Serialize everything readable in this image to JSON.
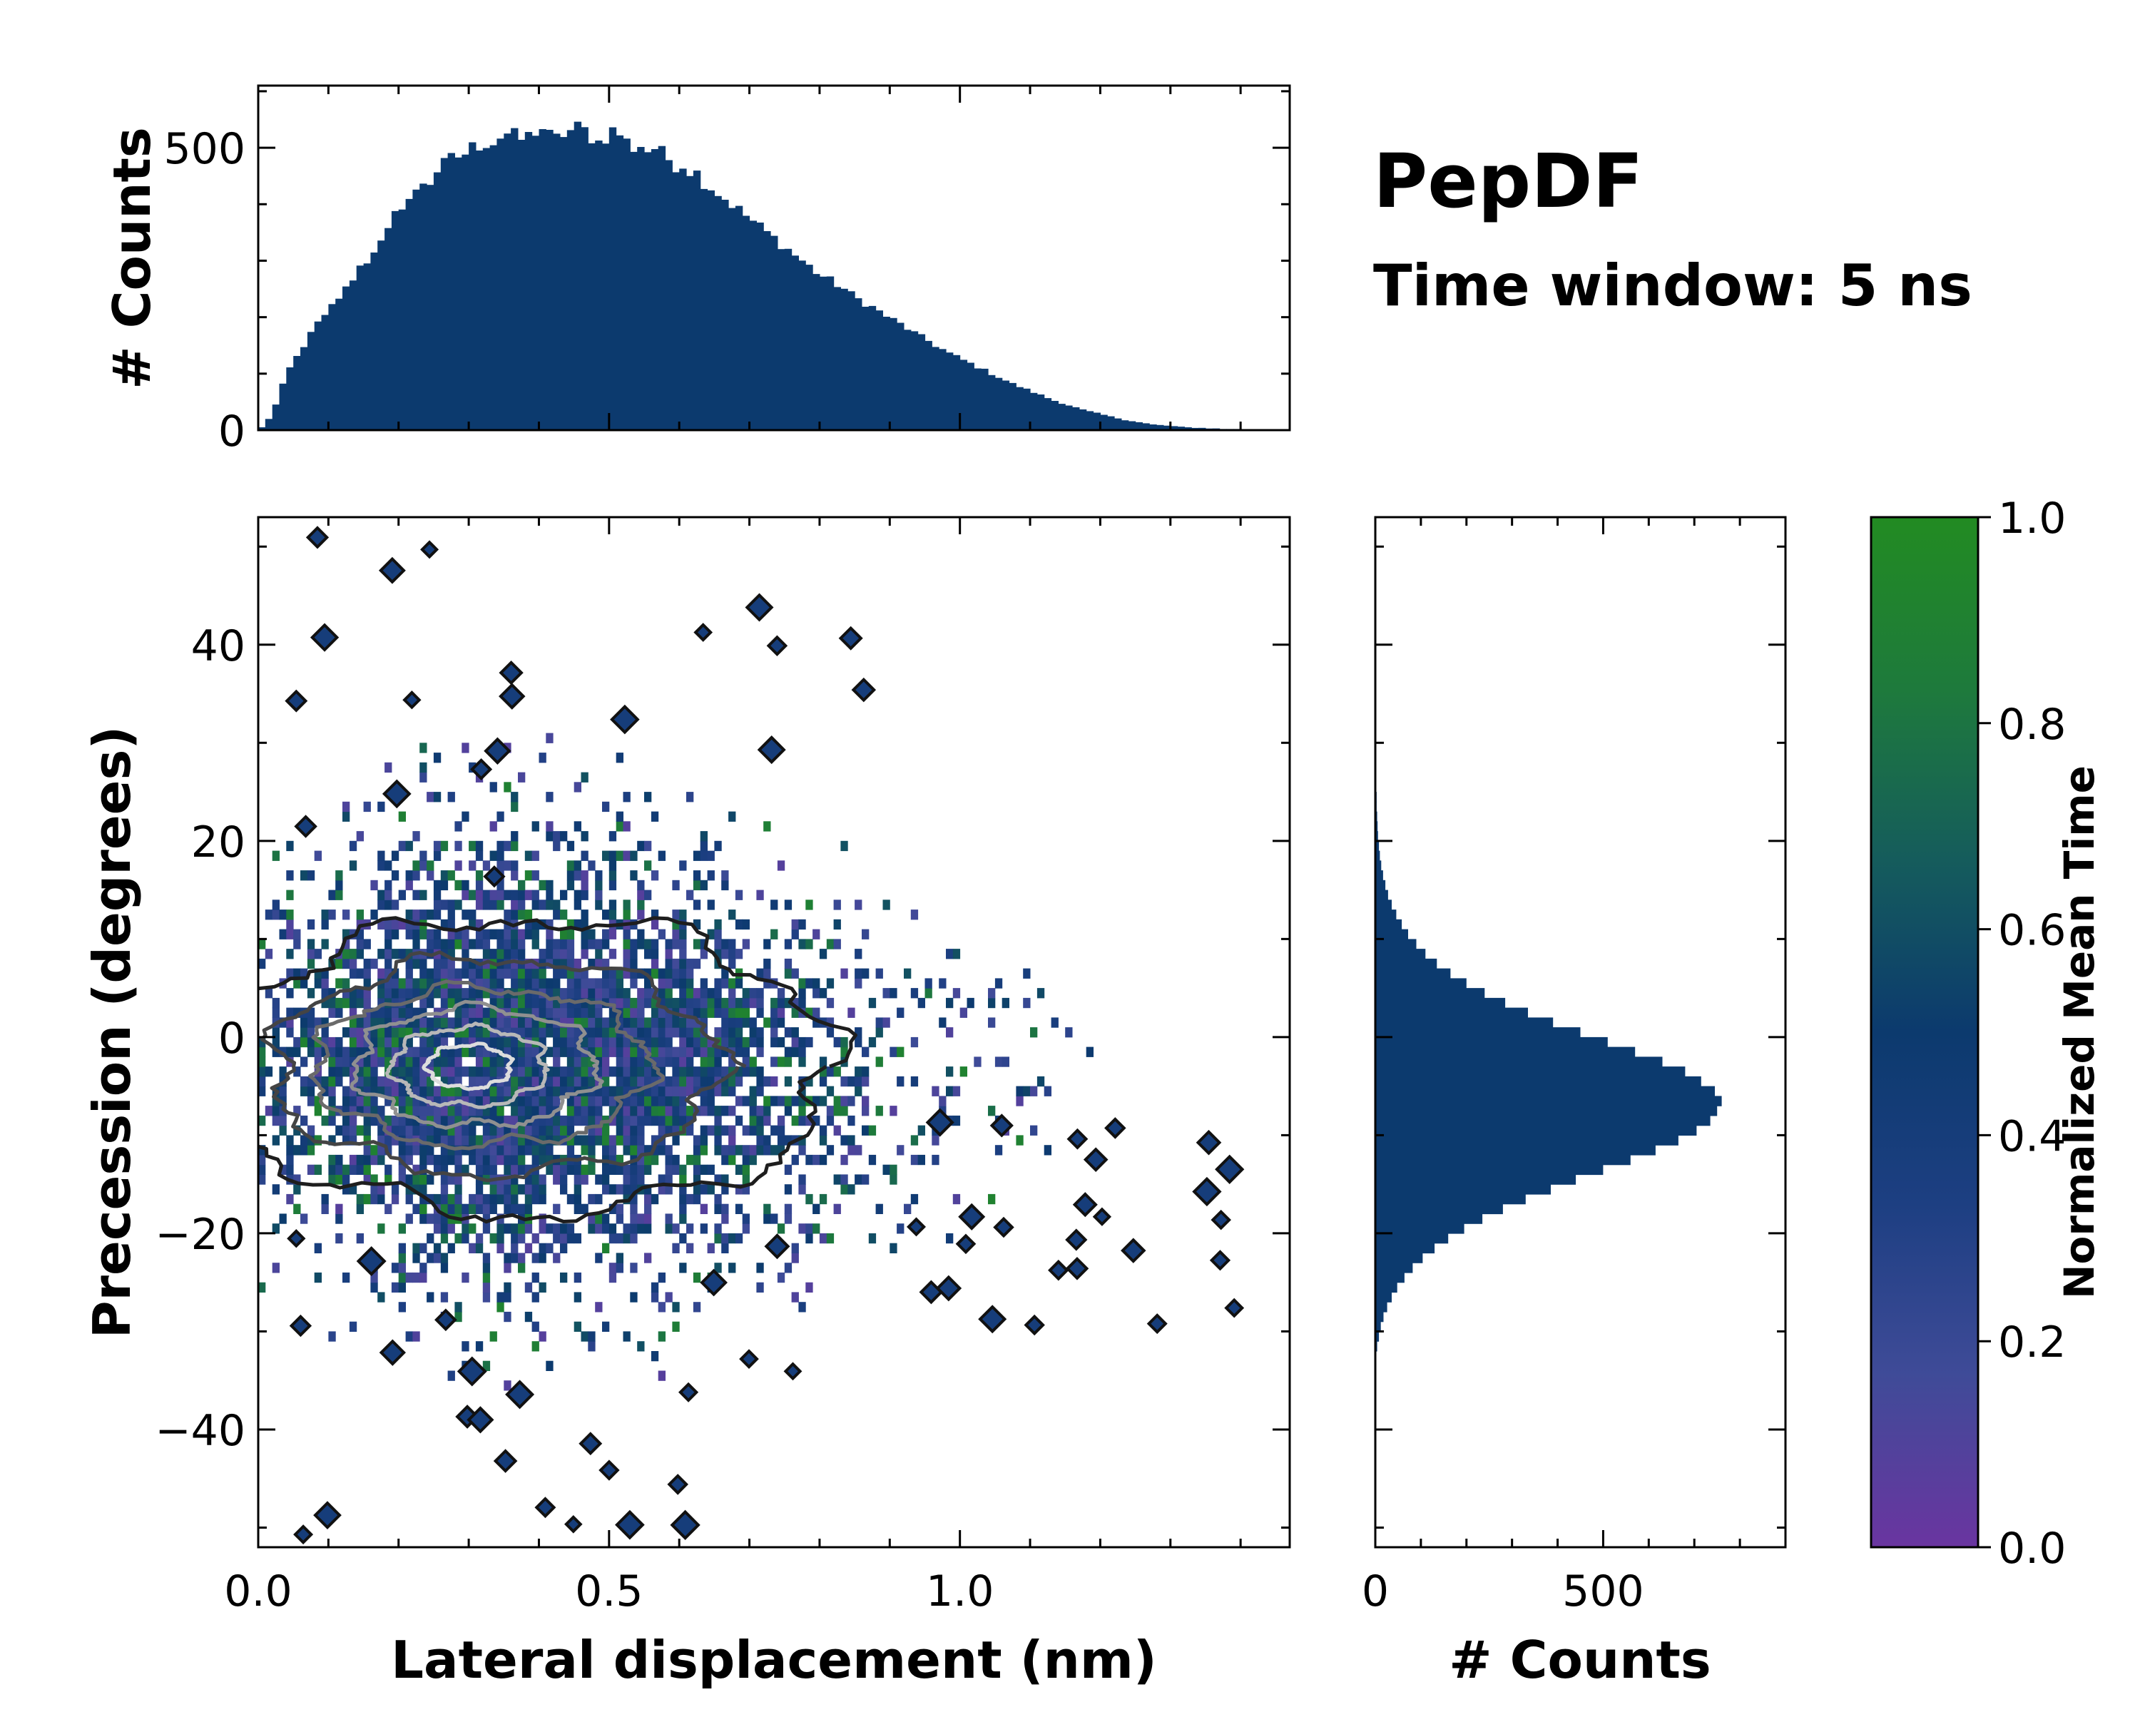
{
  "figure": {
    "title": "PepDF",
    "subtitle": "Time window: 5 ns"
  },
  "chart_data": [
    {
      "id": "top_hist",
      "type": "bar",
      "title": "",
      "xlabel": "",
      "ylabel": "# Counts",
      "xlim": [
        0.0,
        1.47
      ],
      "ylim": [
        0,
        610
      ],
      "yticks": [
        0,
        500
      ],
      "ytick_labels": [
        "0",
        "500"
      ],
      "bin_width": 0.01,
      "color": "#0c3a6e",
      "values": [
        5,
        20,
        45,
        80,
        110,
        130,
        150,
        170,
        190,
        200,
        220,
        235,
        250,
        270,
        290,
        300,
        320,
        330,
        350,
        380,
        400,
        410,
        420,
        440,
        440,
        460,
        470,
        480,
        485,
        490,
        500,
        505,
        510,
        510,
        520,
        525,
        520,
        515,
        520,
        530,
        535,
        520,
        515,
        525,
        530,
        535,
        530,
        520,
        510,
        520,
        530,
        525,
        510,
        500,
        505,
        495,
        500,
        490,
        480,
        470,
        470,
        460,
        455,
        440,
        430,
        420,
        410,
        400,
        390,
        380,
        370,
        360,
        350,
        340,
        330,
        320,
        310,
        300,
        290,
        280,
        272,
        265,
        258,
        250,
        240,
        232,
        225,
        218,
        210,
        202,
        195,
        188,
        180,
        172,
        165,
        158,
        150,
        143,
        136,
        130,
        124,
        118,
        112,
        106,
        100,
        94,
        88,
        82,
        77,
        72,
        67,
        62,
        57,
        52,
        48,
        44,
        40,
        36,
        33,
        30,
        27,
        24,
        21,
        18,
        16,
        14,
        12,
        10,
        9,
        8,
        7,
        6,
        5,
        4,
        4,
        3,
        3,
        2,
        2,
        2,
        1,
        1,
        1,
        1,
        1,
        1,
        1
      ]
    },
    {
      "id": "main_2d",
      "type": "heatmap",
      "title": "",
      "xlabel": "Lateral displacement (nm)",
      "ylabel": "Precession (degrees)",
      "xlim": [
        0.0,
        1.47
      ],
      "ylim": [
        -52,
        53
      ],
      "xticks": [
        0.0,
        0.5,
        1.0
      ],
      "xtick_labels": [
        "0.0",
        "0.5",
        "1.0"
      ],
      "yticks": [
        -40,
        -20,
        0,
        20,
        40
      ],
      "ytick_labels": [
        "−40",
        "−20",
        "0",
        "20",
        "40"
      ],
      "description_values": {
        "density_peak_x": 0.32,
        "density_peak_y": -3,
        "sigma_x": 0.28,
        "sigma_y": 10,
        "color_scale": "Normalized Mean Time (0–1)"
      },
      "contours": [
        {
          "level": 1,
          "center": [
            0.38,
            -3
          ],
          "rx": 0.44,
          "ry": 15,
          "color": "#1e1e1e"
        },
        {
          "level": 2,
          "center": [
            0.34,
            -3
          ],
          "rx": 0.32,
          "ry": 11,
          "color": "#444444"
        },
        {
          "level": 3,
          "center": [
            0.32,
            -3
          ],
          "rx": 0.24,
          "ry": 8,
          "color": "#6a6a6a"
        },
        {
          "level": 4,
          "center": [
            0.31,
            -3
          ],
          "rx": 0.17,
          "ry": 6,
          "color": "#909090"
        },
        {
          "level": 5,
          "center": [
            0.3,
            -3
          ],
          "rx": 0.11,
          "ry": 4,
          "color": "#b8b8b8"
        },
        {
          "level": 6,
          "center": [
            0.3,
            -3
          ],
          "rx": 0.06,
          "ry": 2.2,
          "color": "#dddddd"
        }
      ]
    },
    {
      "id": "right_hist",
      "type": "bar",
      "orientation": "horizontal",
      "xlabel": "# Counts",
      "ylabel": "",
      "xlim": [
        0,
        900
      ],
      "ylim": [
        -52,
        53
      ],
      "xticks": [
        0,
        500
      ],
      "xtick_labels": [
        "0",
        "500"
      ],
      "color": "#0c3a6e",
      "bin_width": 1,
      "bin_start": -32,
      "values": [
        4,
        8,
        12,
        18,
        26,
        36,
        48,
        64,
        82,
        104,
        130,
        160,
        195,
        235,
        280,
        330,
        385,
        440,
        500,
        560,
        615,
        665,
        705,
        735,
        750,
        760,
        745,
        715,
        680,
        630,
        570,
        510,
        450,
        390,
        335,
        285,
        240,
        200,
        165,
        135,
        110,
        90,
        72,
        58,
        46,
        36,
        28,
        22,
        17,
        13,
        10,
        8,
        6,
        5,
        4,
        3,
        3,
        2,
        2,
        1,
        1,
        1,
        1
      ]
    },
    {
      "id": "colorbar",
      "type": "colorbar",
      "label": "Normalized Mean Time",
      "range": [
        0.0,
        1.0
      ],
      "ticks": [
        0.0,
        0.2,
        0.4,
        0.6,
        0.8,
        1.0
      ],
      "tick_labels": [
        "0.0",
        "0.2",
        "0.4",
        "0.6",
        "0.8",
        "1.0"
      ],
      "colors": [
        "#6a35a0",
        "#3f4b98",
        "#1d3f82",
        "#0c3a6e",
        "#155c5c",
        "#1e7a3c",
        "#228b22"
      ]
    }
  ]
}
